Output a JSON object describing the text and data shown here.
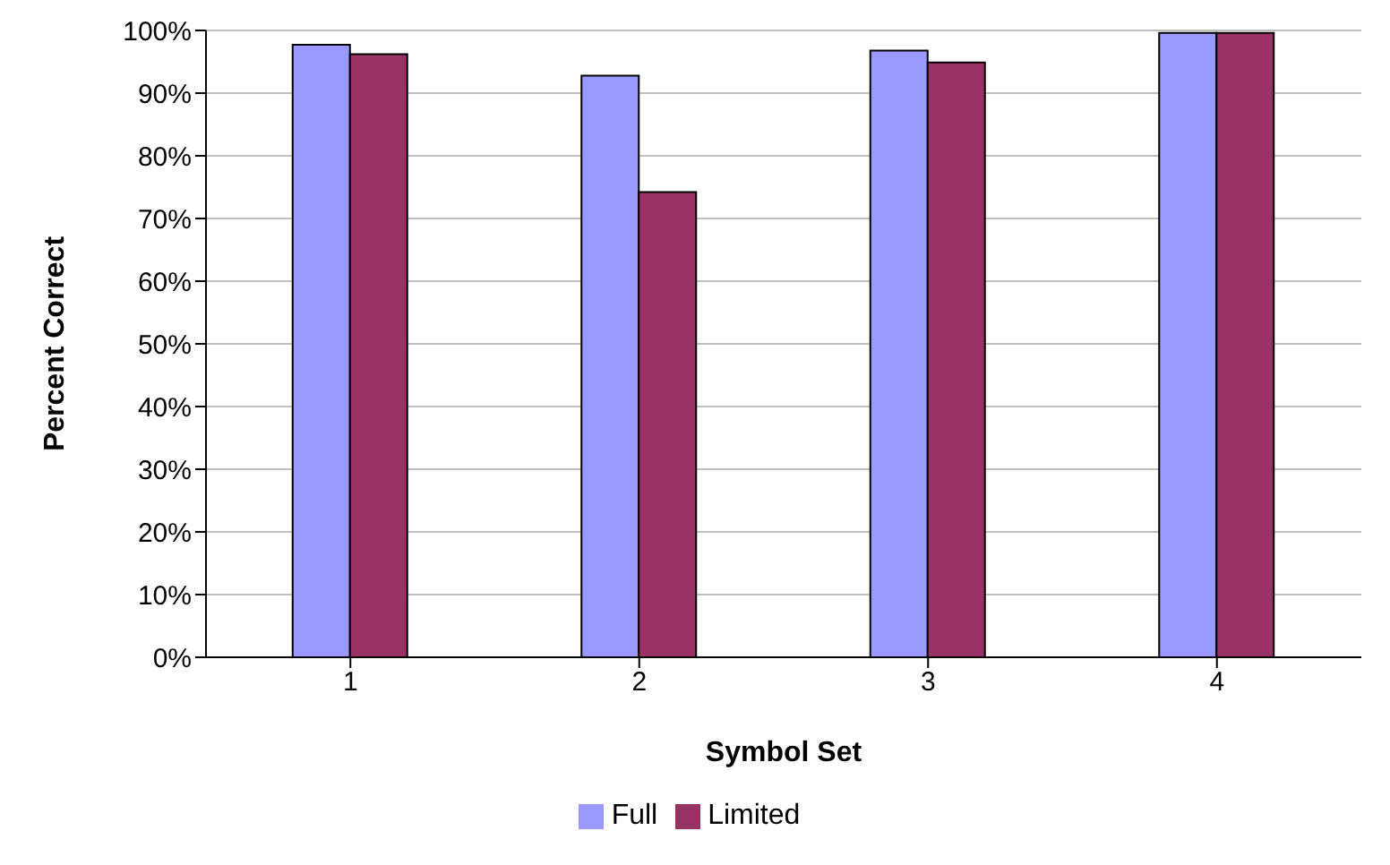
{
  "chart_data": {
    "type": "bar",
    "xlabel": "Symbol Set",
    "ylabel": "Percent Correct",
    "categories": [
      "1",
      "2",
      "3",
      "4"
    ],
    "series": [
      {
        "name": "Full",
        "color": "#9999ff",
        "values": [
          97.7,
          92.8,
          96.8,
          99.6
        ]
      },
      {
        "name": "Limited",
        "color": "#993366",
        "values": [
          96.2,
          74.2,
          94.9,
          99.6
        ]
      }
    ],
    "ylim": [
      0,
      100
    ],
    "yticks": [
      {
        "value": 0,
        "label": "0%"
      },
      {
        "value": 10,
        "label": "10%"
      },
      {
        "value": 20,
        "label": "20%"
      },
      {
        "value": 30,
        "label": "30%"
      },
      {
        "value": 40,
        "label": "40%"
      },
      {
        "value": 50,
        "label": "50%"
      },
      {
        "value": 60,
        "label": "60%"
      },
      {
        "value": 70,
        "label": "70%"
      },
      {
        "value": 80,
        "label": "80%"
      },
      {
        "value": 90,
        "label": "90%"
      },
      {
        "value": 100,
        "label": "100%"
      }
    ],
    "grid": "y",
    "legend": "bottom"
  }
}
